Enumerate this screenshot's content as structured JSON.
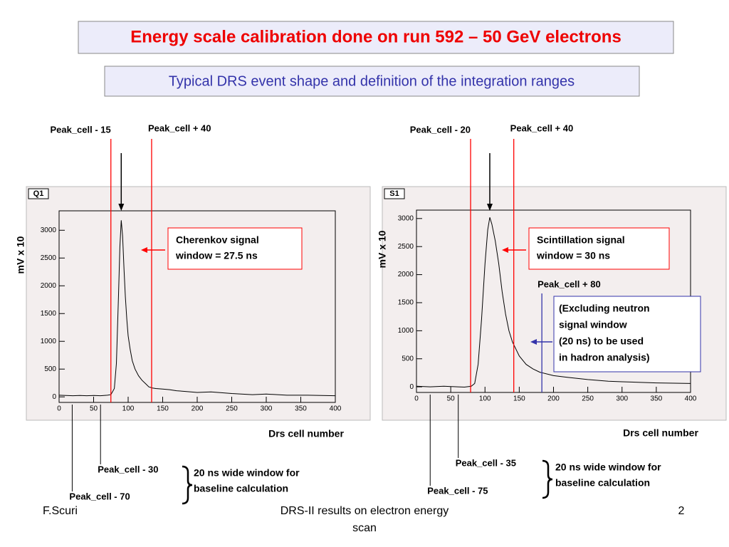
{
  "title": "Energy scale calibration done on run 592 – 50 GeV electrons",
  "subtitle": "Typical DRS event shape and definition of the integration ranges",
  "chart_data": [
    {
      "type": "line",
      "panel_label": "Q1",
      "y_label": "mV x 10",
      "x_label": "Drs cell number",
      "x": [
        0,
        10,
        20,
        30,
        40,
        50,
        60,
        70,
        75,
        80,
        83,
        86,
        88,
        90,
        92,
        94,
        96,
        98,
        100,
        103,
        106,
        110,
        115,
        120,
        125,
        130,
        135,
        140,
        150,
        160,
        170,
        180,
        200,
        220,
        250,
        280,
        300,
        330,
        360,
        400
      ],
      "values": [
        30,
        25,
        20,
        25,
        20,
        25,
        20,
        30,
        40,
        150,
        600,
        1800,
        2700,
        3180,
        2900,
        2300,
        1800,
        1400,
        1100,
        850,
        650,
        500,
        380,
        300,
        240,
        180,
        160,
        150,
        140,
        130,
        110,
        100,
        80,
        90,
        60,
        40,
        50,
        30,
        30,
        20
      ],
      "color": "#000000",
      "xlim": [
        0,
        400
      ],
      "ylim": [
        -100,
        3350
      ],
      "xticks": [
        0,
        50,
        100,
        150,
        200,
        250,
        300,
        350,
        400
      ],
      "yticks": [
        0,
        500,
        1000,
        1500,
        2000,
        2500,
        3000
      ],
      "top_markers": [
        {
          "x": 75,
          "label": "Peak_cell - 15",
          "color": "#ff0000"
        },
        {
          "x": 134,
          "label": "Peak_cell + 40",
          "color": "#ff0000"
        }
      ],
      "bottom_markers": [
        {
          "x": 60,
          "label": "Peak_cell - 30",
          "color": "#000000"
        },
        {
          "x": 19,
          "label": "Peak_cell - 70",
          "color": "#000000"
        }
      ],
      "annotation": {
        "lines": [
          "Cherenkov signal",
          "window = 27.5 ns"
        ],
        "color": "#ff0000"
      },
      "note": [
        "20 ns wide window for",
        "baseline calculation"
      ]
    },
    {
      "type": "line",
      "panel_label": "S1",
      "y_label": "mV x 10",
      "x_label": "Drs cell number",
      "x": [
        0,
        20,
        40,
        60,
        70,
        80,
        85,
        90,
        95,
        100,
        104,
        107,
        110,
        115,
        120,
        125,
        130,
        135,
        140,
        150,
        160,
        170,
        180,
        200,
        220,
        250,
        280,
        300,
        350,
        400
      ],
      "values": [
        10,
        0,
        10,
        0,
        -5,
        10,
        60,
        400,
        1200,
        2200,
        2800,
        3020,
        2900,
        2600,
        2200,
        1700,
        1300,
        1000,
        800,
        550,
        400,
        320,
        260,
        200,
        170,
        130,
        100,
        90,
        70,
        60
      ],
      "color": "#000000",
      "xlim": [
        0,
        400
      ],
      "ylim": [
        -100,
        3150
      ],
      "xticks": [
        0,
        50,
        100,
        150,
        200,
        250,
        300,
        350,
        400
      ],
      "yticks": [
        0,
        500,
        1000,
        1500,
        2000,
        2500,
        3000
      ],
      "top_markers": [
        {
          "x": 79,
          "label": "Peak_cell - 20",
          "color": "#ff0000"
        },
        {
          "x": 142,
          "label": "Peak_cell + 40",
          "color": "#ff0000"
        }
      ],
      "bottom_markers": [
        {
          "x": 61,
          "label": "Peak_cell - 35",
          "color": "#000000"
        },
        {
          "x": 20,
          "label": "Peak_cell - 75",
          "color": "#000000"
        }
      ],
      "neutron_marker": {
        "x": 183,
        "label": "Peak_cell + 80",
        "color": "#3333aa"
      },
      "annotation": {
        "lines": [
          "Scintillation signal",
          "window = 30 ns"
        ],
        "color": "#ff0000"
      },
      "neutron_note": [
        "(Excluding neutron",
        " signal window",
        " (20 ns) to be used",
        " in hadron analysis)"
      ],
      "note": [
        "20 ns wide window for",
        "baseline calculation"
      ]
    }
  ],
  "footer": {
    "author": "F.Scuri",
    "text": [
      "DRS-II results on electron energy",
      "scan"
    ],
    "page": 2
  }
}
